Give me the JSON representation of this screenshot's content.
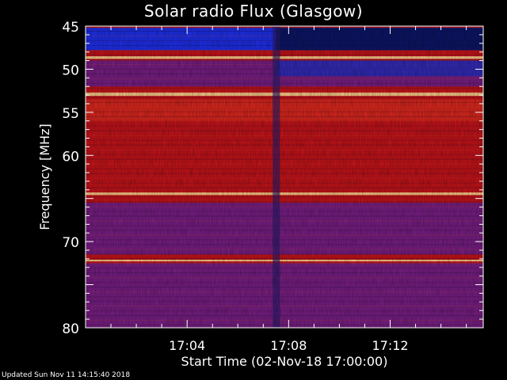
{
  "chart_data": {
    "type": "heatmap",
    "title": "Solar radio Flux (Glasgow)",
    "ylabel": "Frequency [MHz]",
    "xlabel": "Start Time (02-Nov-18 17:00:00)",
    "ylim": [
      45,
      80
    ],
    "y_inverted": true,
    "yticks": [
      "45",
      "50",
      "55",
      "60",
      "70",
      "80"
    ],
    "xticks": [
      "17:04",
      "17:08",
      "17:12"
    ],
    "xlim": [
      "17:00:00",
      "17:15:40"
    ],
    "colors": {
      "low": "#1a2cff",
      "mid": "#d01010",
      "high": "#ffd090"
    },
    "bands": [
      {
        "freq_from": 45.2,
        "freq_to": 47.8,
        "level": "low"
      },
      {
        "freq_from": 48.5,
        "freq_to": 48.8,
        "level": "high"
      },
      {
        "freq_from": 49.0,
        "freq_to": 52.0,
        "level": "low-mid"
      },
      {
        "freq_from": 52.7,
        "freq_to": 53.1,
        "level": "high"
      },
      {
        "freq_from": 53.5,
        "freq_to": 56.0,
        "level": "mid-high"
      },
      {
        "freq_from": 56.0,
        "freq_to": 64.0,
        "level": "mid"
      },
      {
        "freq_from": 64.3,
        "freq_to": 64.6,
        "level": "high"
      },
      {
        "freq_from": 65.5,
        "freq_to": 71.5,
        "level": "low-mid"
      },
      {
        "freq_from": 72.1,
        "freq_to": 72.3,
        "level": "high"
      },
      {
        "freq_from": 72.5,
        "freq_to": 80.0,
        "level": "low-mid"
      }
    ],
    "event_time": "17:07:30"
  },
  "footer": "Updated Sun Nov 11 14:15:40 2018"
}
